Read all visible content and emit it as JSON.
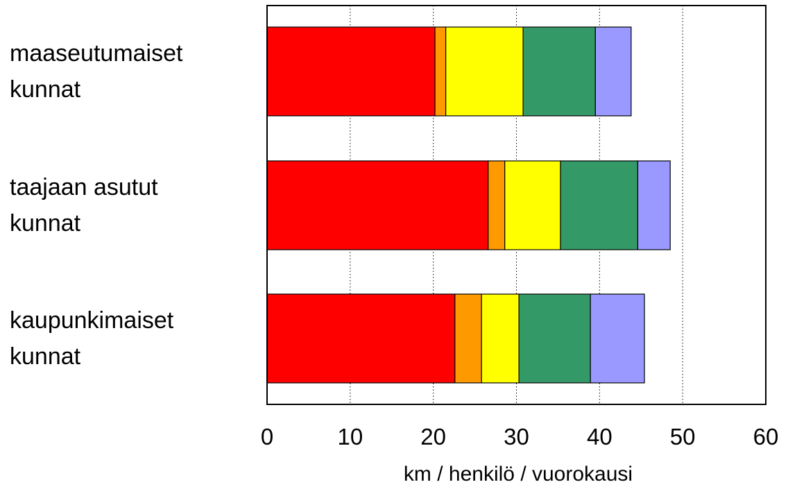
{
  "chart_data": {
    "type": "bar",
    "orientation": "horizontal",
    "stacked": true,
    "categories": [
      [
        "maaseutumaiset",
        "kunnat"
      ],
      [
        "taajaan asutut",
        "kunnat"
      ],
      [
        "kaupunkimaiset",
        "kunnat"
      ]
    ],
    "series": [
      {
        "color": "#ff0000",
        "values": [
          20.2,
          26.6,
          22.6
        ]
      },
      {
        "color": "#ff9900",
        "values": [
          1.3,
          2.0,
          3.2
        ]
      },
      {
        "color": "#ffff00",
        "values": [
          9.3,
          6.7,
          4.5
        ]
      },
      {
        "color": "#339966",
        "values": [
          8.7,
          9.3,
          8.6
        ]
      },
      {
        "color": "#9999ff",
        "values": [
          4.3,
          3.9,
          6.5
        ]
      }
    ],
    "xlabel": "km / henkilö / vuorokausi",
    "xlim": [
      0,
      60
    ],
    "xticks": [
      0,
      10,
      20,
      30,
      40,
      50,
      60
    ],
    "xtick_labels": [
      "0",
      "10",
      "20",
      "30",
      "40",
      "50",
      "60"
    ],
    "grid": "vertical dotted",
    "legend": "none"
  }
}
